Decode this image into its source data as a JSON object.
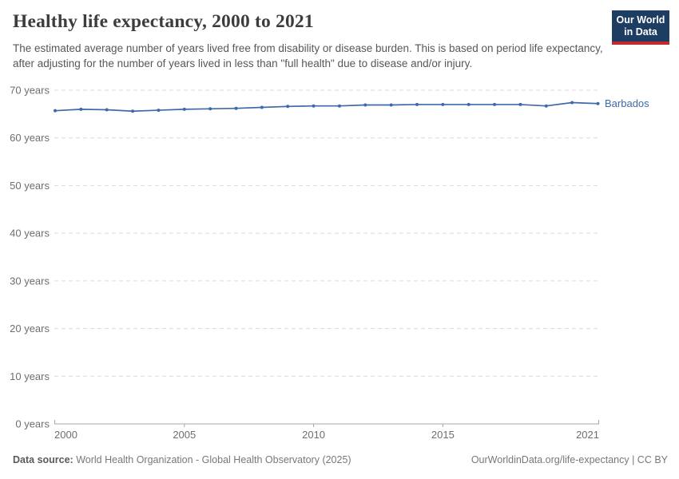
{
  "header": {
    "title": "Healthy life expectancy, 2000 to 2021",
    "subtitle": "The estimated average number of years lived free from disability or disease burden. This is based on period life expectancy, after adjusting for the number of years lived in less than \"full health\" due to disease and/or injury.",
    "logo": {
      "line1": "Our World",
      "line2": "in Data"
    }
  },
  "footer": {
    "datasource_label": "Data source:",
    "datasource_value": " World Health Organization - Global Health Observatory (2025)",
    "link": "OurWorldinData.org/life-expectancy | CC BY"
  },
  "colors": {
    "series_blue": "#3d6aa8",
    "logo_bg": "#1d3d63",
    "logo_bar": "#c5292d",
    "gridline": "#dadada",
    "axis_line": "#a5a5a5",
    "tick_label": "#6e6e6e",
    "title_text": "#3c3c3c",
    "subtitle_text": "#575757",
    "footer_text": "#787878"
  },
  "chart_data": {
    "type": "line",
    "title": "Healthy life expectancy, 2000 to 2021",
    "xlabel": "",
    "ylabel": "years",
    "x": [
      2000,
      2001,
      2002,
      2003,
      2004,
      2005,
      2006,
      2007,
      2008,
      2009,
      2010,
      2011,
      2012,
      2013,
      2014,
      2015,
      2016,
      2017,
      2018,
      2019,
      2020,
      2021
    ],
    "series": [
      {
        "name": "Barbados",
        "color": "#3d6aa8",
        "values": [
          65.7,
          66.0,
          65.9,
          65.6,
          65.8,
          66.0,
          66.1,
          66.2,
          66.4,
          66.6,
          66.7,
          66.7,
          66.9,
          66.9,
          67.0,
          67.0,
          67.0,
          67.0,
          67.0,
          66.7,
          67.4,
          67.2
        ]
      }
    ],
    "xlim": [
      2000,
      2021
    ],
    "ylim": [
      0,
      70
    ],
    "x_ticks": [
      2000,
      2005,
      2010,
      2015,
      2021
    ],
    "x_tick_labels": [
      "2000",
      "2005",
      "2010",
      "2015",
      "2021"
    ],
    "y_ticks": [
      0,
      10,
      20,
      30,
      40,
      50,
      60,
      70
    ],
    "y_tick_labels": [
      "0 years",
      "10 years",
      "20 years",
      "30 years",
      "40 years",
      "50 years",
      "60 years",
      "70 years"
    ],
    "grid": "horizontal-dashed",
    "legend": "end-of-line-label"
  }
}
